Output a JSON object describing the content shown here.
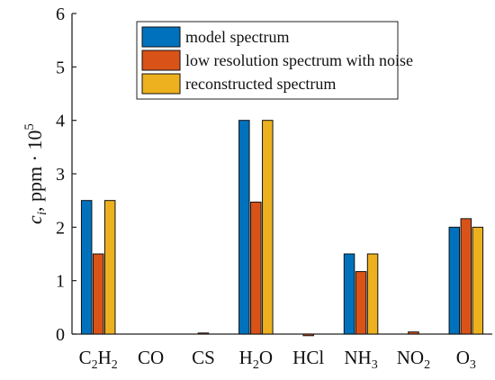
{
  "chart_data": {
    "type": "bar",
    "categories": [
      "C2H2",
      "CO",
      "CS",
      "H2O",
      "HCl",
      "NH3",
      "NO2",
      "O3"
    ],
    "category_labels": [
      [
        {
          "t": "C"
        },
        {
          "t": "2",
          "sub": true
        },
        {
          "t": "H"
        },
        {
          "t": "2",
          "sub": true
        }
      ],
      [
        {
          "t": "CO"
        }
      ],
      [
        {
          "t": "CS"
        }
      ],
      [
        {
          "t": "H"
        },
        {
          "t": "2",
          "sub": true
        },
        {
          "t": "O"
        }
      ],
      [
        {
          "t": "HCl"
        }
      ],
      [
        {
          "t": "NH"
        },
        {
          "t": "3",
          "sub": true
        }
      ],
      [
        {
          "t": "NO"
        },
        {
          "t": "2",
          "sub": true
        }
      ],
      [
        {
          "t": "O"
        },
        {
          "t": "3",
          "sub": true
        }
      ]
    ],
    "series": [
      {
        "name": "model spectrum",
        "color": "#0072BD",
        "values": [
          2.5,
          0,
          0,
          4.0,
          0,
          1.5,
          0,
          2.0
        ]
      },
      {
        "name": "low resolution spectrum with noise",
        "color": "#D95319",
        "values": [
          1.5,
          0,
          0.02,
          2.47,
          -0.03,
          1.17,
          0.04,
          2.16
        ]
      },
      {
        "name": "reconstructed spectrum",
        "color": "#EDB120",
        "values": [
          2.5,
          0,
          0,
          4.0,
          0,
          1.5,
          0,
          2.0
        ]
      }
    ],
    "ylabel_main": "c",
    "ylabel_sub": "i",
    "ylabel_rest": ", ppm · 10",
    "ylabel_sup": "5",
    "ylim": [
      0,
      6
    ],
    "yticks": [
      "0",
      "1",
      "2",
      "3",
      "4",
      "5",
      "6"
    ],
    "legend_position": "top-right",
    "grid": false
  }
}
